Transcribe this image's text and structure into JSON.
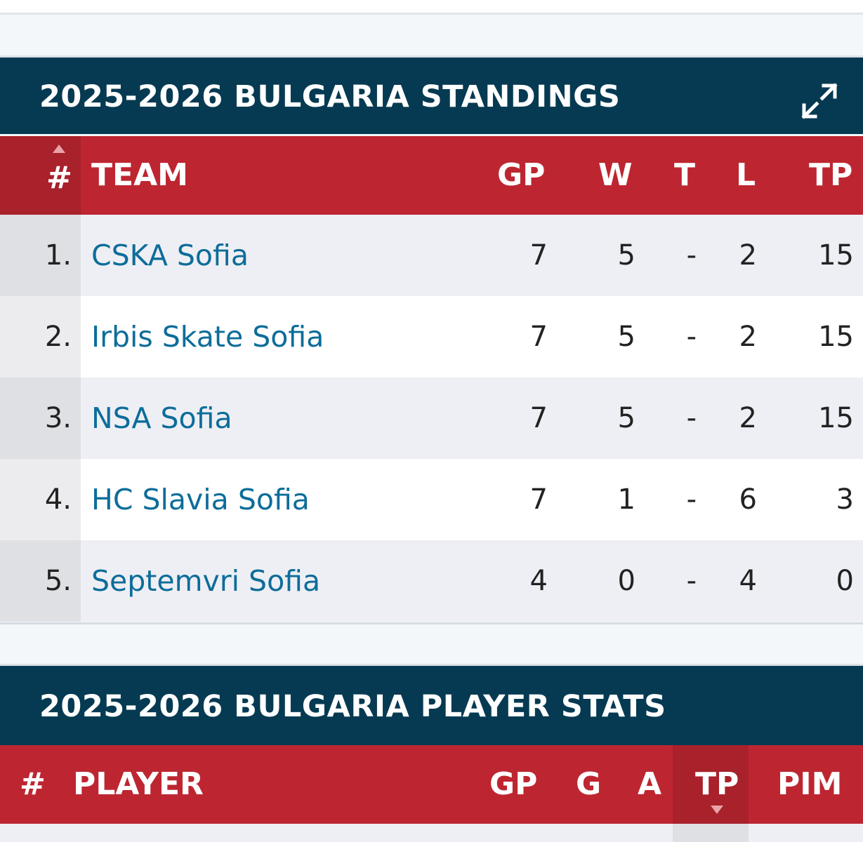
{
  "standings": {
    "title": "2025-2026 BULGARIA STANDINGS",
    "expand_icon": "expand-arrows-icon",
    "columns": {
      "rank": "#",
      "team": "TEAM",
      "gp": "GP",
      "w": "W",
      "t": "T",
      "l": "L",
      "tp": "TP"
    },
    "sort": {
      "column": "rank",
      "direction": "ascending"
    },
    "rows": [
      {
        "rank": "1.",
        "team": "CSKA Sofia",
        "gp": "7",
        "w": "5",
        "t": "-",
        "l": "2",
        "tp": "15"
      },
      {
        "rank": "2.",
        "team": "Irbis Skate Sofia",
        "gp": "7",
        "w": "5",
        "t": "-",
        "l": "2",
        "tp": "15"
      },
      {
        "rank": "3.",
        "team": "NSA Sofia",
        "gp": "7",
        "w": "5",
        "t": "-",
        "l": "2",
        "tp": "15"
      },
      {
        "rank": "4.",
        "team": "HC Slavia Sofia",
        "gp": "7",
        "w": "1",
        "t": "-",
        "l": "6",
        "tp": "3"
      },
      {
        "rank": "5.",
        "team": "Septemvri Sofia",
        "gp": "4",
        "w": "0",
        "t": "-",
        "l": "4",
        "tp": "0"
      }
    ]
  },
  "player_stats": {
    "title": "2025-2026 BULGARIA PLAYER STATS",
    "columns": {
      "rank": "#",
      "player": "PLAYER",
      "gp": "GP",
      "g": "G",
      "a": "A",
      "tp": "TP",
      "pim": "PIM"
    },
    "sort": {
      "column": "tp",
      "direction": "descending"
    }
  },
  "colors": {
    "header_navy": "#063a52",
    "header_red": "#bd2631",
    "sorted_column_red": "#a8212b",
    "link_blue": "#0d6d9a"
  }
}
